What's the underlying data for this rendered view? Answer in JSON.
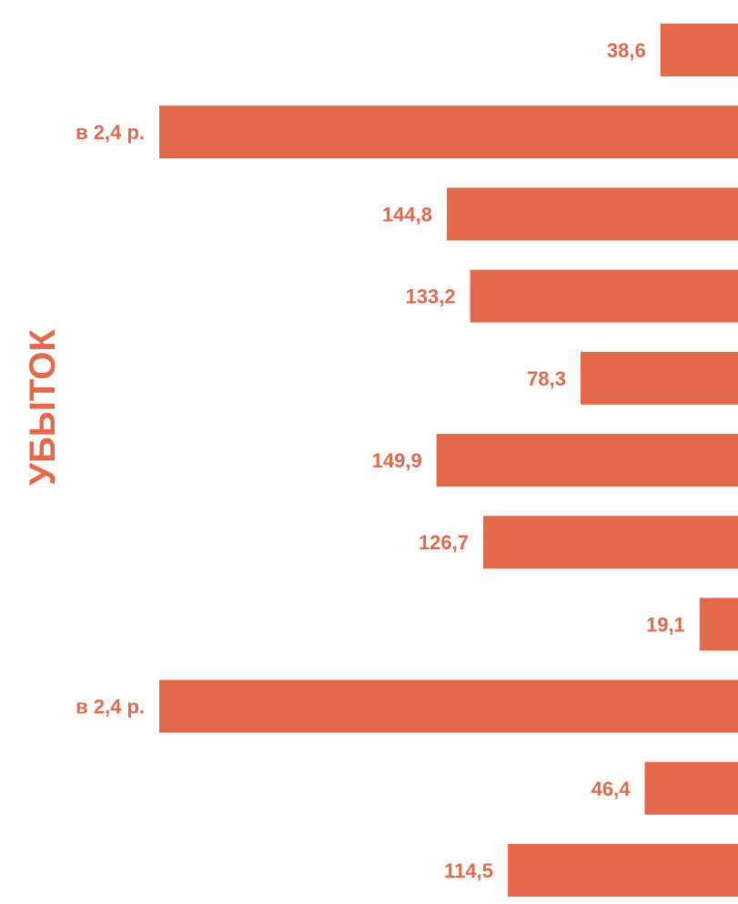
{
  "chart_data": {
    "type": "bar",
    "orientation": "horizontal-right-aligned",
    "ylabel": "УБЫТОК",
    "color": "#E2694A",
    "label_color": "#E2694A",
    "values": [
      38.6,
      null,
      144.8,
      133.2,
      78.3,
      149.9,
      126.7,
      19.1,
      null,
      46.4,
      114.5
    ],
    "labels": [
      "38,6",
      "в 2,4 р.",
      "144,8",
      "133,2",
      "78,3",
      "149,9",
      "126,7",
      "19,1",
      "в 2,4 р.",
      "46,4",
      "114,5"
    ]
  }
}
